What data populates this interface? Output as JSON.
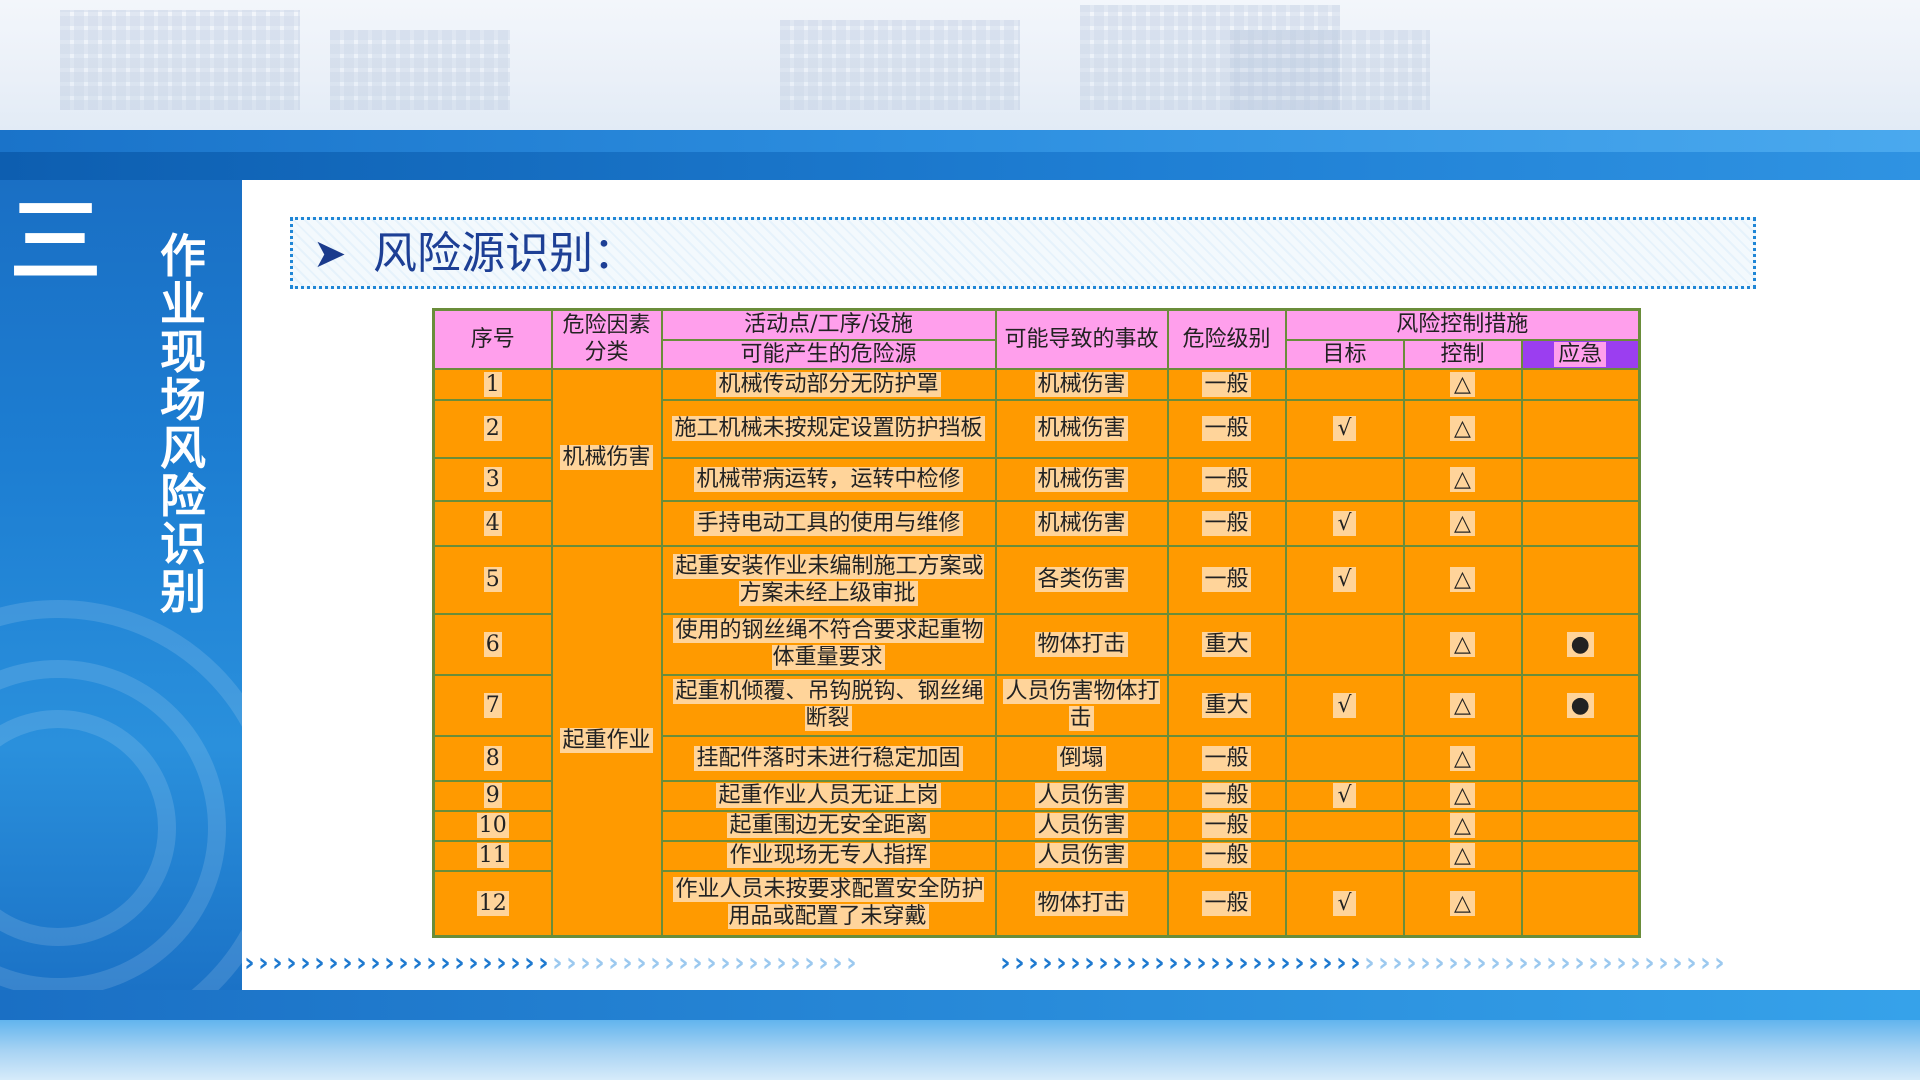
{
  "sidebar": {
    "number": "三",
    "title": "作业现场风险识别"
  },
  "heading": {
    "arrow_icon": "right-arrowhead-icon",
    "text": "风险源识别："
  },
  "table": {
    "headers": {
      "seq": "序号",
      "category_line1": "危险因素",
      "category_line2": "分类",
      "activity": "活动点/工序/设施",
      "hazard": "可能产生的危险源",
      "accident": "可能导致的事故",
      "level": "危险级别",
      "measures": "风险控制措施",
      "target": "目标",
      "control": "控制",
      "emergency": "应急"
    },
    "categories": [
      "机械伤害",
      "起重作业"
    ],
    "rows": [
      {
        "seq": "1",
        "hazard": "机械传动部分无防护罩",
        "accident": "机械伤害",
        "level": "一般",
        "target": "",
        "control": "△",
        "emergency": ""
      },
      {
        "seq": "2",
        "hazard": "施工机械未按规定设置防护挡板",
        "accident": "机械伤害",
        "level": "一般",
        "target": "√",
        "control": "△",
        "emergency": ""
      },
      {
        "seq": "3",
        "hazard": "机械带病运转，运转中检修",
        "accident": "机械伤害",
        "level": "一般",
        "target": "",
        "control": "△",
        "emergency": ""
      },
      {
        "seq": "4",
        "hazard": "手持电动工具的使用与维修",
        "accident": "机械伤害",
        "level": "一般",
        "target": "√",
        "control": "△",
        "emergency": ""
      },
      {
        "seq": "5",
        "hazard": "起重安装作业未编制施工方案或方案未经上级审批",
        "accident": "各类伤害",
        "level": "一般",
        "target": "√",
        "control": "△",
        "emergency": ""
      },
      {
        "seq": "6",
        "hazard": "使用的钢丝绳不符合要求起重物体重量要求",
        "accident": "物体打击",
        "level": "重大",
        "target": "",
        "control": "△",
        "emergency": "●"
      },
      {
        "seq": "7",
        "hazard": "起重机倾覆、吊钩脱钩、钢丝绳断裂",
        "accident": "人员伤害物体打击",
        "level": "重大",
        "target": "√",
        "control": "△",
        "emergency": "●"
      },
      {
        "seq": "8",
        "hazard": "挂配件落时未进行稳定加固",
        "accident": "倒塌",
        "level": "一般",
        "target": "",
        "control": "△",
        "emergency": ""
      },
      {
        "seq": "9",
        "hazard": "起重作业人员无证上岗",
        "accident": "人员伤害",
        "level": "一般",
        "target": "√",
        "control": "△",
        "emergency": ""
      },
      {
        "seq": "10",
        "hazard": "起重围边无安全距离",
        "accident": "人员伤害",
        "level": "一般",
        "target": "",
        "control": "△",
        "emergency": ""
      },
      {
        "seq": "11",
        "hazard": "作业现场无专人指挥",
        "accident": "人员伤害",
        "level": "一般",
        "target": "",
        "control": "△",
        "emergency": ""
      },
      {
        "seq": "12",
        "hazard": "作业人员未按要求配置安全防护用品或配置了未穿戴",
        "accident": "物体打击",
        "level": "一般",
        "target": "√",
        "control": "△",
        "emergency": ""
      }
    ]
  },
  "colors": {
    "header_pink": "#ff9fec",
    "header_purple": "#9b3ef0",
    "cell_orange": "#ff9a00",
    "text_highlight": "#ffd49a",
    "border_green": "#6a8d3a",
    "brand_blue": "#1a6fc4",
    "heading_text": "#1d3f95"
  }
}
